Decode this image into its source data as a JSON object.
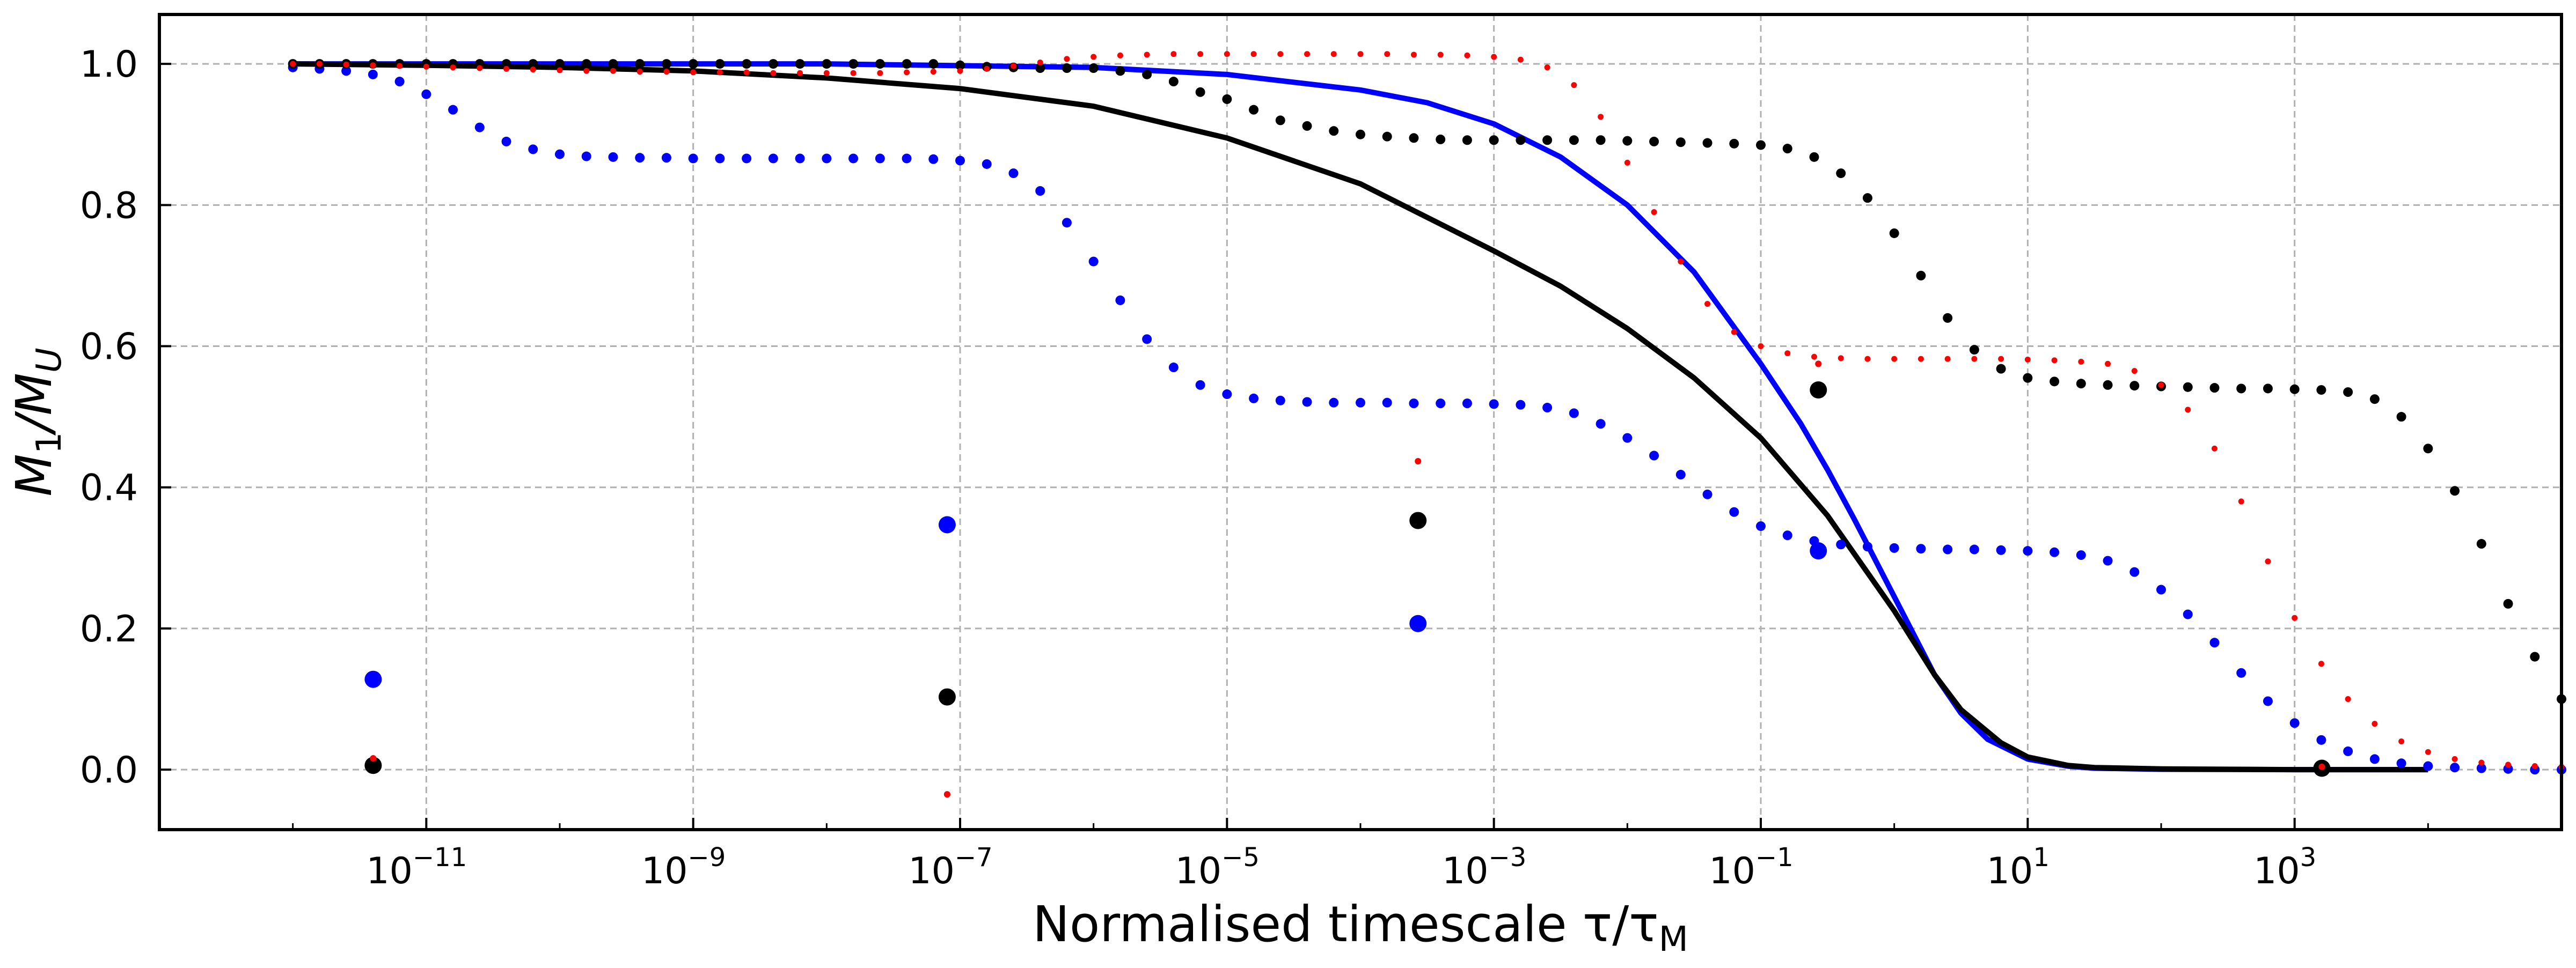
{
  "chart_data": {
    "type": "scatter",
    "title": "",
    "xlabel": "Normalised timescale τ/τ",
    "xlabel_sub": "M",
    "ylabel": "M",
    "ylabel_parts": [
      "M",
      "1",
      "/M",
      "U"
    ],
    "xscale": "log",
    "xlim": [
      1e-13,
      100000.0
    ],
    "ylim": [
      -0.085,
      1.07
    ],
    "grid": true,
    "legend": "none",
    "x_ticks": [
      {
        "value": 1e-11,
        "base": "10",
        "exp": "−11"
      },
      {
        "value": 1e-09,
        "base": "10",
        "exp": "−9"
      },
      {
        "value": 1e-07,
        "base": "10",
        "exp": "−7"
      },
      {
        "value": 1e-05,
        "base": "10",
        "exp": "−5"
      },
      {
        "value": 0.001,
        "base": "10",
        "exp": "−3"
      },
      {
        "value": 0.1,
        "base": "10",
        "exp": "−1"
      },
      {
        "value": 10,
        "base": "10",
        "exp": "1"
      },
      {
        "value": 1000,
        "base": "10",
        "exp": "3"
      }
    ],
    "y_ticks": [
      {
        "value": 0.0,
        "label": "0.0"
      },
      {
        "value": 0.2,
        "label": "0.2"
      },
      {
        "value": 0.4,
        "label": "0.4"
      },
      {
        "value": 0.6,
        "label": "0.6"
      },
      {
        "value": 0.8,
        "label": "0.8"
      },
      {
        "value": 1.0,
        "label": "1.0"
      }
    ],
    "series": [
      {
        "kind": "curve",
        "color": "#0000ff",
        "log_x": [
          -12,
          -10,
          -8,
          -6,
          -5,
          -4,
          -3.5,
          -3,
          -2.5,
          -2,
          -1.5,
          -1,
          -0.7,
          -0.5,
          -0.3,
          0,
          0.3,
          0.5,
          0.7,
          1,
          1.3,
          1.5,
          2,
          3,
          4
        ],
        "y": [
          1.0,
          1.0,
          1.0,
          0.995,
          0.985,
          0.963,
          0.945,
          0.915,
          0.868,
          0.8,
          0.705,
          0.575,
          0.49,
          0.425,
          0.355,
          0.245,
          0.135,
          0.08,
          0.043,
          0.015,
          0.005,
          0.002,
          0.0005,
          0.0,
          0.0
        ]
      },
      {
        "kind": "curve",
        "color": "#000000",
        "log_x": [
          -12,
          -11,
          -10,
          -9,
          -8,
          -7,
          -6,
          -5,
          -4,
          -3,
          -2.5,
          -2,
          -1.5,
          -1,
          -0.5,
          0,
          0.3,
          0.5,
          0.8,
          1,
          1.3,
          1.5,
          2,
          3,
          4
        ],
        "y": [
          1.0,
          0.998,
          0.995,
          0.99,
          0.98,
          0.965,
          0.94,
          0.895,
          0.83,
          0.735,
          0.685,
          0.625,
          0.555,
          0.47,
          0.36,
          0.225,
          0.135,
          0.085,
          0.038,
          0.018,
          0.006,
          0.003,
          0.001,
          0.0,
          0.0
        ]
      },
      {
        "kind": "points",
        "color": "#0000ff",
        "size": "medium",
        "log_x_start": -12,
        "log_x_step": 0.2,
        "y": [
          0.995,
          0.993,
          0.99,
          0.985,
          0.975,
          0.957,
          0.935,
          0.91,
          0.89,
          0.879,
          0.872,
          0.869,
          0.868,
          0.867,
          0.867,
          0.866,
          0.866,
          0.866,
          0.866,
          0.866,
          0.866,
          0.866,
          0.866,
          0.866,
          0.865,
          0.863,
          0.858,
          0.845,
          0.82,
          0.775,
          0.72,
          0.665,
          0.61,
          0.57,
          0.545,
          0.532,
          0.526,
          0.523,
          0.521,
          0.52,
          0.52,
          0.52,
          0.519,
          0.519,
          0.519,
          0.518,
          0.517,
          0.513,
          0.505,
          0.49,
          0.47,
          0.445,
          0.418,
          0.39,
          0.365,
          0.345,
          0.332,
          0.324,
          0.319,
          0.316,
          0.314,
          0.313,
          0.312,
          0.312,
          0.311,
          0.31,
          0.308,
          0.304,
          0.296,
          0.28,
          0.255,
          0.22,
          0.18,
          0.137,
          0.097,
          0.066,
          0.042,
          0.026,
          0.015,
          0.009,
          0.005,
          0.003,
          0.002,
          0.001,
          0.0,
          0.0,
          0.0,
          0.0,
          0.0,
          0.0,
          0.0,
          0.0,
          0.0,
          0.0,
          0.0,
          0.0,
          0.0,
          0.0,
          0.0,
          0.0,
          0.0
        ]
      },
      {
        "kind": "points",
        "color": "#000000",
        "size": "medium",
        "log_x_start": -12,
        "log_x_step": 0.2,
        "y": [
          1.0,
          1.0,
          1.0,
          1.0,
          1.0,
          1.0,
          1.0,
          1.0,
          1.0,
          1.0,
          1.0,
          1.0,
          1.0,
          1.0,
          1.0,
          1.0,
          1.0,
          1.0,
          1.0,
          1.0,
          1.0,
          1.0,
          1.0,
          1.0,
          1.0,
          0.998,
          0.996,
          0.995,
          0.994,
          0.994,
          0.994,
          0.99,
          0.985,
          0.975,
          0.96,
          0.95,
          0.935,
          0.92,
          0.912,
          0.905,
          0.9,
          0.897,
          0.895,
          0.893,
          0.892,
          0.892,
          0.892,
          0.892,
          0.892,
          0.892,
          0.891,
          0.89,
          0.889,
          0.888,
          0.887,
          0.885,
          0.88,
          0.868,
          0.845,
          0.81,
          0.76,
          0.7,
          0.64,
          0.595,
          0.568,
          0.555,
          0.55,
          0.547,
          0.545,
          0.544,
          0.543,
          0.542,
          0.541,
          0.54,
          0.54,
          0.539,
          0.538,
          0.535,
          0.525,
          0.5,
          0.455,
          0.395,
          0.32,
          0.235,
          0.16,
          0.1,
          0.058,
          0.033,
          0.019,
          0.011,
          0.007,
          0.005,
          0.004,
          0.003,
          0.003,
          0.002,
          0.002,
          0.002,
          0.002,
          0.002,
          0.002
        ]
      },
      {
        "kind": "points",
        "color": "#ff0000",
        "size": "small",
        "log_x_start": -12,
        "log_x_step": 0.2,
        "y": [
          1.0,
          1.0,
          0.999,
          0.998,
          0.997,
          0.996,
          0.995,
          0.994,
          0.993,
          0.992,
          0.991,
          0.99,
          0.99,
          0.989,
          0.989,
          0.988,
          0.988,
          0.988,
          0.987,
          0.987,
          0.987,
          0.987,
          0.987,
          0.988,
          0.989,
          0.99,
          0.993,
          0.997,
          1.002,
          1.007,
          1.01,
          1.012,
          1.013,
          1.014,
          1.014,
          1.014,
          1.014,
          1.014,
          1.014,
          1.014,
          1.014,
          1.014,
          1.013,
          1.013,
          1.012,
          1.01,
          1.006,
          0.995,
          0.97,
          0.925,
          0.86,
          0.79,
          0.72,
          0.66,
          0.62,
          0.6,
          0.59,
          0.585,
          0.583,
          0.582,
          0.582,
          0.582,
          0.582,
          0.582,
          0.582,
          0.581,
          0.58,
          0.578,
          0.575,
          0.565,
          0.545,
          0.51,
          0.455,
          0.38,
          0.295,
          0.215,
          0.15,
          0.1,
          0.065,
          0.04,
          0.025,
          0.015,
          0.01,
          0.007,
          0.005,
          0.004,
          0.003,
          0.003,
          0.002,
          0.002,
          0.002,
          0.002,
          0.002,
          0.002,
          0.002,
          0.002,
          0.002,
          0.002,
          0.002,
          0.002,
          0.002
        ]
      },
      {
        "kind": "markers",
        "color": "#0000ff",
        "size": "large",
        "points": [
          [
            4e-12,
            0.128
          ],
          [
            8e-08,
            0.347
          ],
          [
            0.00027,
            0.207
          ],
          [
            0.27,
            0.31
          ]
        ]
      },
      {
        "kind": "markers",
        "color": "#000000",
        "size": "large",
        "points": [
          [
            4e-12,
            0.006
          ],
          [
            8e-08,
            0.103
          ],
          [
            0.00027,
            0.353
          ],
          [
            0.27,
            0.538
          ],
          [
            1600,
            0.002
          ]
        ]
      },
      {
        "kind": "markers",
        "color": "#ff0000",
        "size": "small",
        "points": [
          [
            4e-12,
            0.016
          ],
          [
            8e-08,
            -0.035
          ],
          [
            0.00027,
            0.437
          ],
          [
            0.27,
            0.575
          ],
          [
            1600,
            0.004
          ]
        ]
      }
    ]
  }
}
